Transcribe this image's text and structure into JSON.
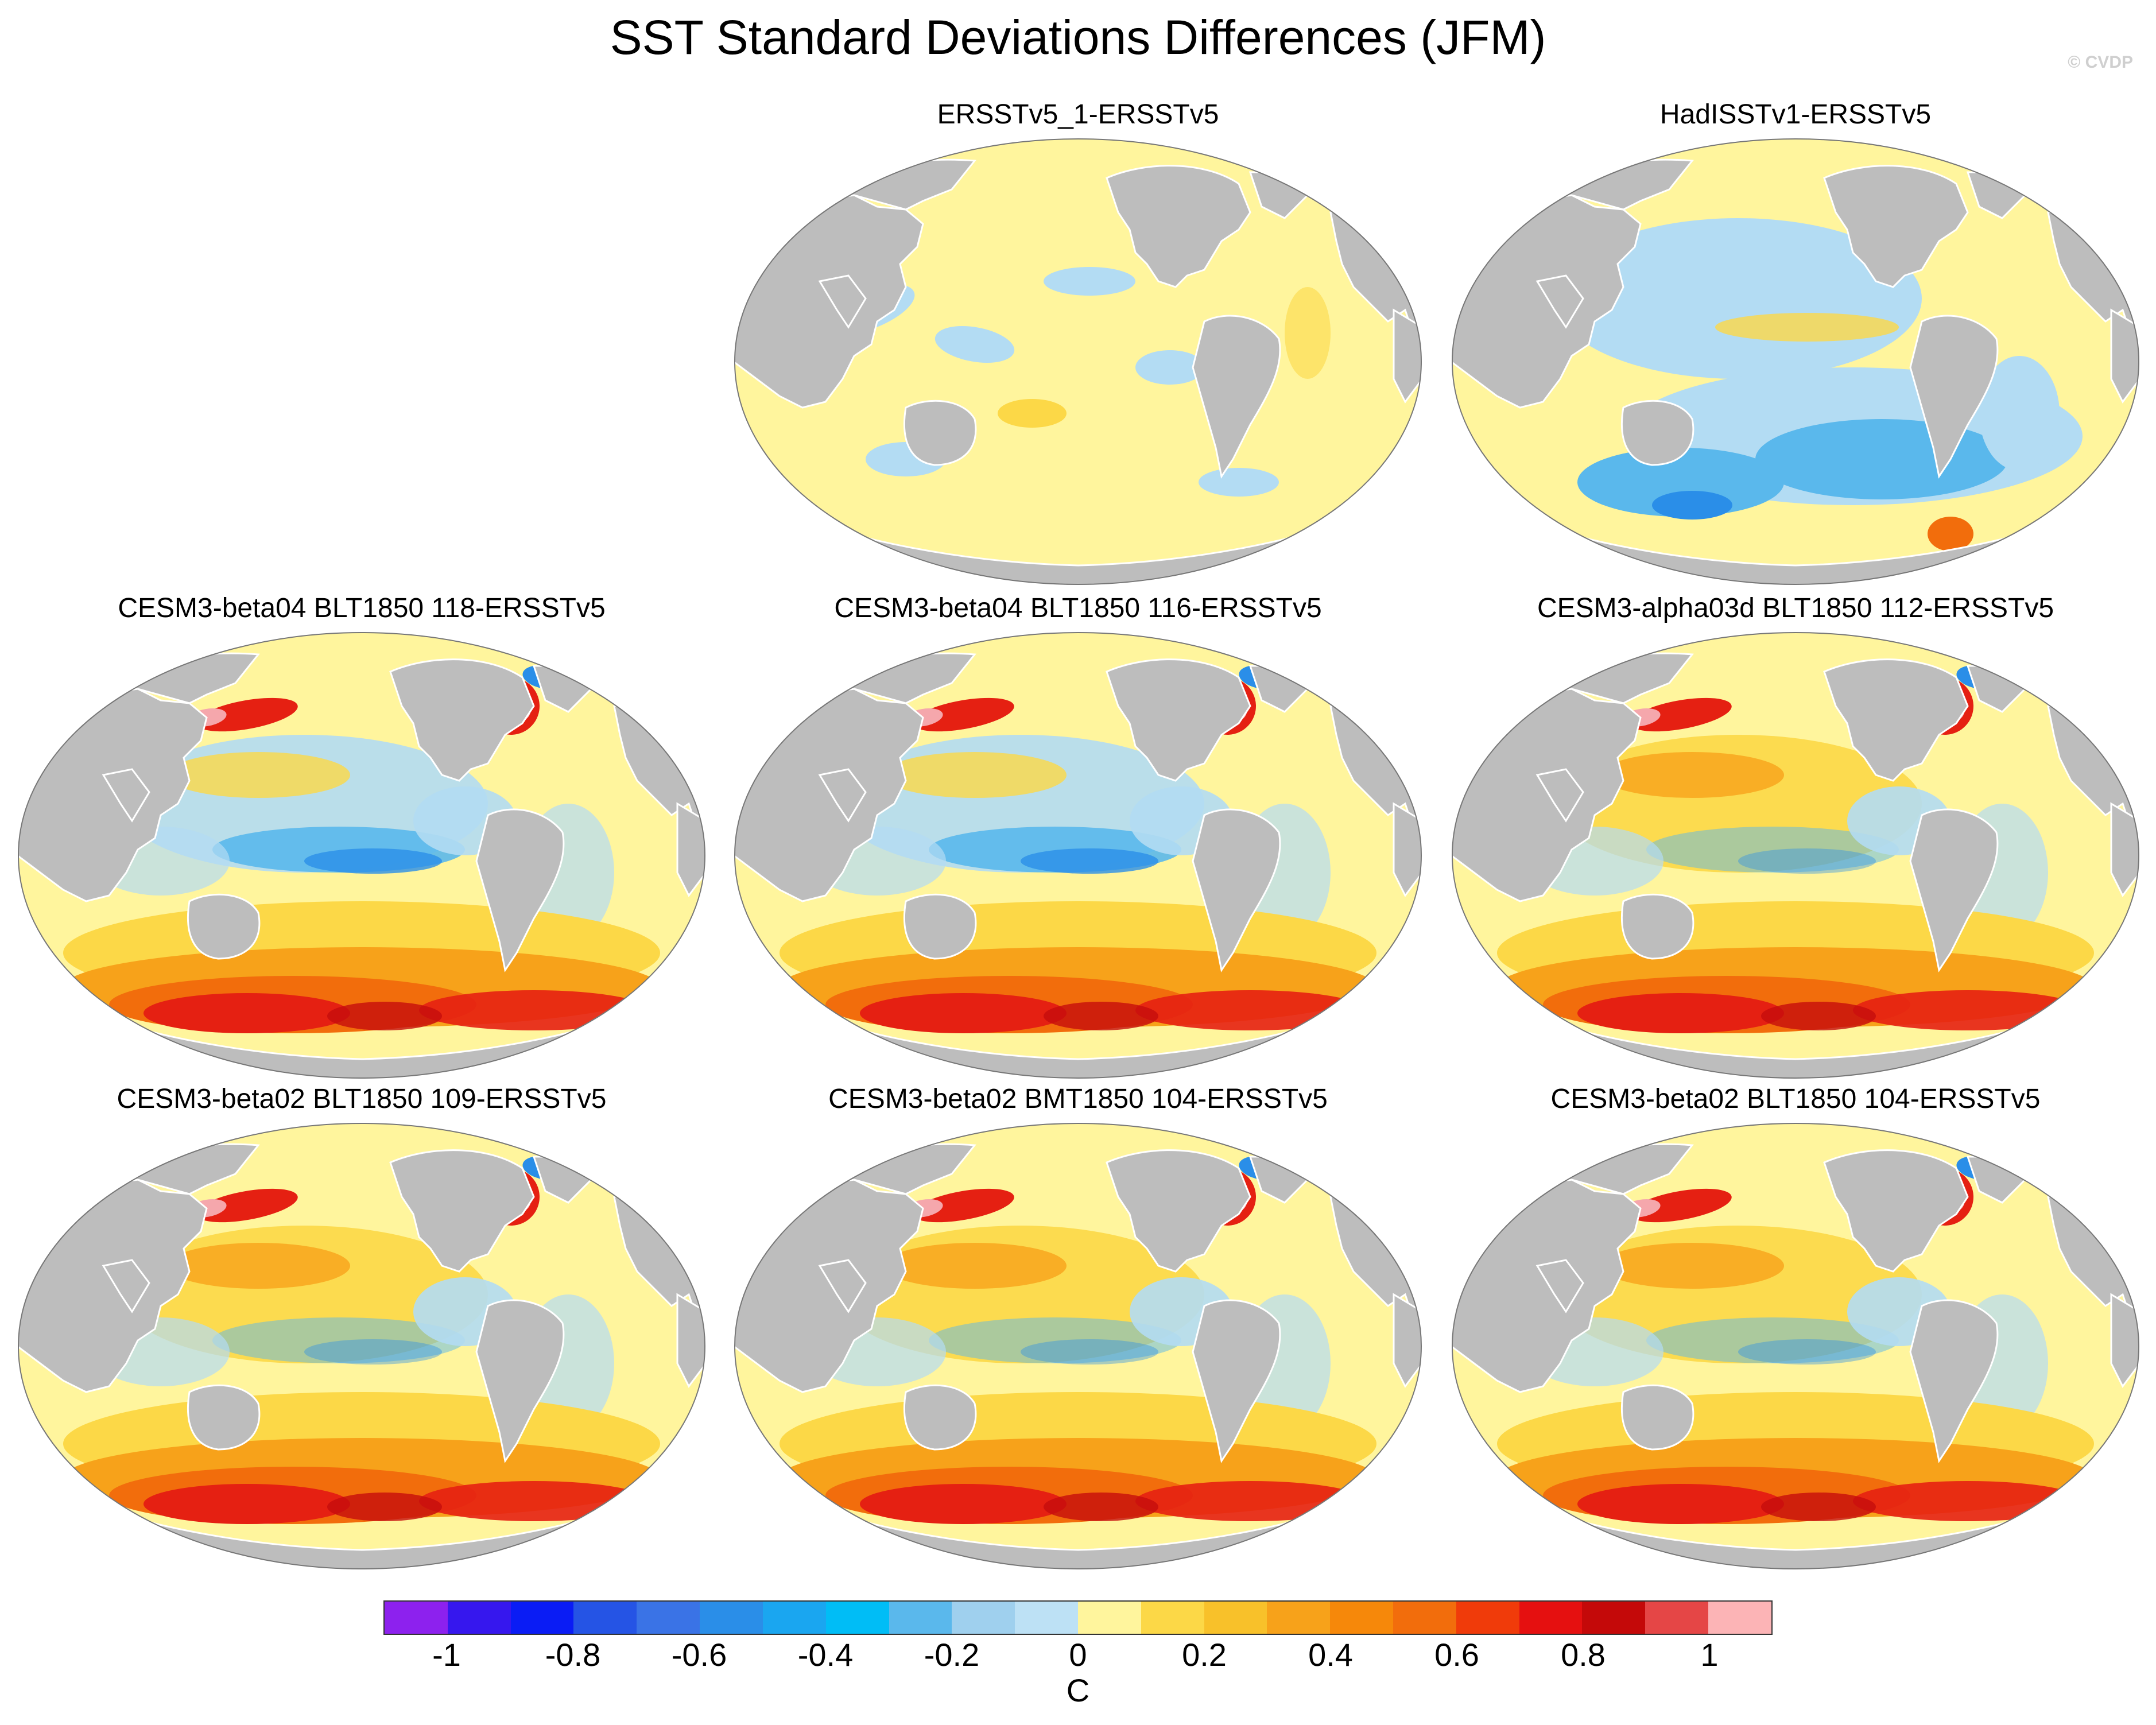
{
  "title": "SST Standard Deviations Differences (JFM)",
  "copyright": "© CVDP",
  "colors": {
    "land": "#bdbdbd",
    "ocean_base": "#fff59d",
    "light_blue": "#b3dcf3",
    "mid_blue": "#5ab8ec",
    "dark_blue": "#2a8ee8",
    "gold": "#fcd847",
    "orange": "#f7a21a",
    "dark_orange": "#f26d0c",
    "red": "#e52012",
    "dark_red": "#c50d0d",
    "pink": "#f5a7ac"
  },
  "panels": [
    {
      "id": "ersstv5-1",
      "title": "ERSSTv5_1-ERSSTv5",
      "style": "neutral"
    },
    {
      "id": "hadisst",
      "title": "HadISSTv1-ERSSTv5",
      "style": "negative"
    },
    {
      "id": "beta04-118",
      "title": "CESM3-beta04 BLT1850 118-ERSSTv5",
      "style": "model"
    },
    {
      "id": "beta04-116",
      "title": "CESM3-beta04 BLT1850 116-ERSSTv5",
      "style": "model"
    },
    {
      "id": "alpha03d-112",
      "title": "CESM3-alpha03d BLT1850 112-ERSSTv5",
      "style": "model-warm"
    },
    {
      "id": "beta02-109",
      "title": "CESM3-beta02 BLT1850 109-ERSSTv5",
      "style": "model-warm"
    },
    {
      "id": "beta02-bmt104",
      "title": "CESM3-beta02 BMT1850 104-ERSSTv5",
      "style": "model-warm"
    },
    {
      "id": "beta02-blt104",
      "title": "CESM3-beta02 BLT1850 104-ERSSTv5",
      "style": "model-warm"
    }
  ],
  "colorbar": {
    "unit": "C",
    "colors": [
      "#8d21ee",
      "#3617ee",
      "#0a1cf5",
      "#2554e5",
      "#3a73e6",
      "#2a8ee8",
      "#1aa6f0",
      "#00bdf6",
      "#5ab8ec",
      "#9fd0ee",
      "#bde1f5",
      "#fff59d",
      "#fcd847",
      "#f8c12a",
      "#f7a21a",
      "#f6880a",
      "#f26d0c",
      "#f03b0a",
      "#e51010",
      "#c40909",
      "#e54646",
      "#fcb4b6"
    ],
    "tick_labels": [
      "-1",
      "-0.8",
      "-0.6",
      "-0.4",
      "-0.2",
      "0",
      "0.2",
      "0.4",
      "0.6",
      "0.8",
      "1"
    ],
    "tick_values": [
      -1,
      -0.8,
      -0.6,
      -0.4,
      -0.2,
      0,
      0.2,
      0.4,
      0.6,
      0.8,
      1
    ],
    "range": [
      -1.1,
      1.1
    ]
  }
}
